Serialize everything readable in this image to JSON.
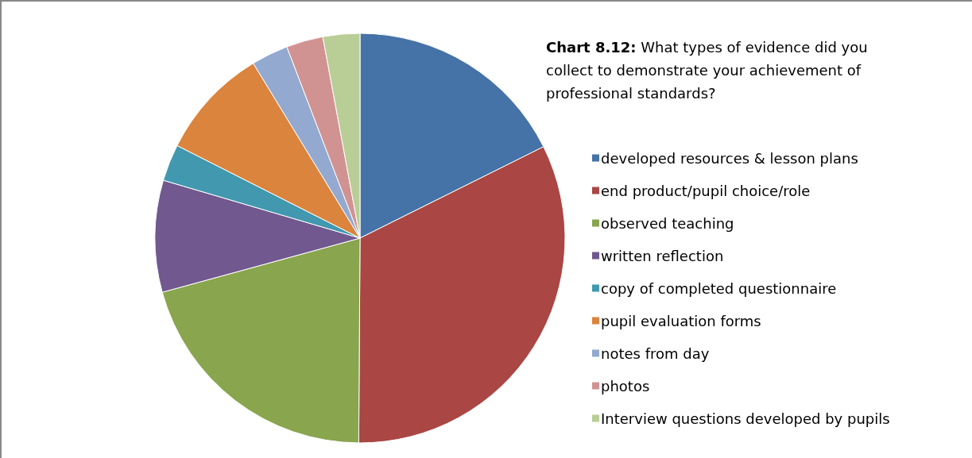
{
  "chart_data": {
    "type": "pie",
    "title": "Chart 8.12: What types of evidence did you collect to demonstrate your achievement of professional standards?",
    "categories": [
      "developed resources & lesson plans",
      "end product/pupil choice/role",
      "observed teaching",
      "written reflection",
      "copy of completed questionnaire",
      "pupil evaluation forms",
      "notes from day",
      "photos",
      "Interview questions developed by pupils"
    ],
    "values": [
      17.6,
      32.4,
      20.6,
      8.8,
      2.9,
      8.8,
      2.9,
      2.9,
      2.9
    ],
    "colors": [
      "#4572a7",
      "#aa4643",
      "#89a54e",
      "#71588f",
      "#4198af",
      "#db843d",
      "#93a9cf",
      "#d19392",
      "#b9cd96"
    ],
    "legend": "right"
  }
}
